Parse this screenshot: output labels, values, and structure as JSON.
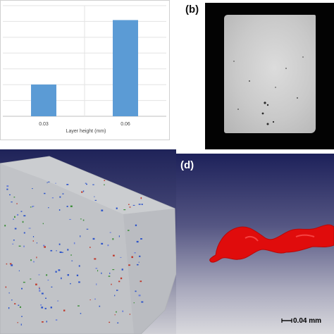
{
  "panels": {
    "b": {
      "label": "(b)"
    },
    "d": {
      "label": "(d)",
      "scale_bar": "0.04 mm"
    }
  },
  "colors": {
    "bar": "#5b9bd5",
    "pore": "#e00c0c"
  },
  "chart_data": {
    "type": "bar",
    "categories": [
      "0.03",
      "0.06"
    ],
    "values": [
      0.33,
      1.0
    ],
    "xlabel": "Layer height (mm)",
    "ylabel": "",
    "ylim": [
      0,
      1.15
    ],
    "grid": true,
    "legend": "none"
  }
}
